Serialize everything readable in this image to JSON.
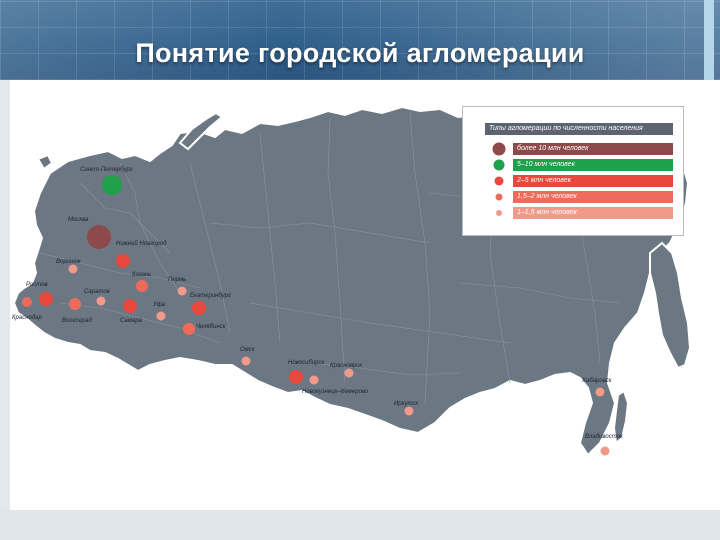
{
  "slide": {
    "title": "Понятие городской агломерации"
  },
  "colors": {
    "land": "#6c7784",
    "land_stroke": "#ffffff",
    "region_line": "#8a949f",
    "green": "#1fa04a",
    "c1": "#8e4a4a",
    "c2": "#c94747",
    "c3": "#e8483d",
    "c4": "#ee6b5c",
    "c5": "#f29a8a"
  },
  "legend": {
    "title": "Типы агломерации по численности населения",
    "items": [
      {
        "label": "более 10 млн человек",
        "color": "#8e4a4a",
        "dot_size": 13
      },
      {
        "label": "5–10 млн человек",
        "color": "#1fa04a",
        "dot_size": 11
      },
      {
        "label": "2–5 млн человек",
        "color": "#e8483d",
        "dot_size": 9
      },
      {
        "label": "1,5–2 млн человек",
        "color": "#ee6b5c",
        "dot_size": 7
      },
      {
        "label": "1–1,5 млн человек",
        "color": "#f29a8a",
        "dot_size": 6
      }
    ]
  },
  "cities": [
    {
      "name": "Санкт-Петербург",
      "cls": "green"
    },
    {
      "name": "Москва",
      "cls": "c1"
    },
    {
      "name": "Нижний Новгород",
      "cls": "c3"
    },
    {
      "name": "Воронеж",
      "cls": "c5"
    },
    {
      "name": "Казань",
      "cls": "c4"
    },
    {
      "name": "Ростов",
      "cls": "c3"
    },
    {
      "name": "Краснодар",
      "cls": "c4"
    },
    {
      "name": "Саратов",
      "cls": "c5"
    },
    {
      "name": "Волгоград",
      "cls": "c4"
    },
    {
      "name": "Самара",
      "cls": "c3"
    },
    {
      "name": "Пермь",
      "cls": "c5"
    },
    {
      "name": "Уфа",
      "cls": "c5"
    },
    {
      "name": "Екатеринбург",
      "cls": "c3"
    },
    {
      "name": "Челябинск",
      "cls": "c4"
    },
    {
      "name": "Омск",
      "cls": "c5"
    },
    {
      "name": "Новосибирск",
      "cls": "c3"
    },
    {
      "name": "Красноярск",
      "cls": "c5"
    },
    {
      "name": "Новокузнецк–Кемерово",
      "cls": "c5"
    },
    {
      "name": "Иркутск",
      "cls": "c5"
    },
    {
      "name": "Хабаровск",
      "cls": "c5"
    },
    {
      "name": "Владивосток",
      "cls": "c5"
    }
  ]
}
